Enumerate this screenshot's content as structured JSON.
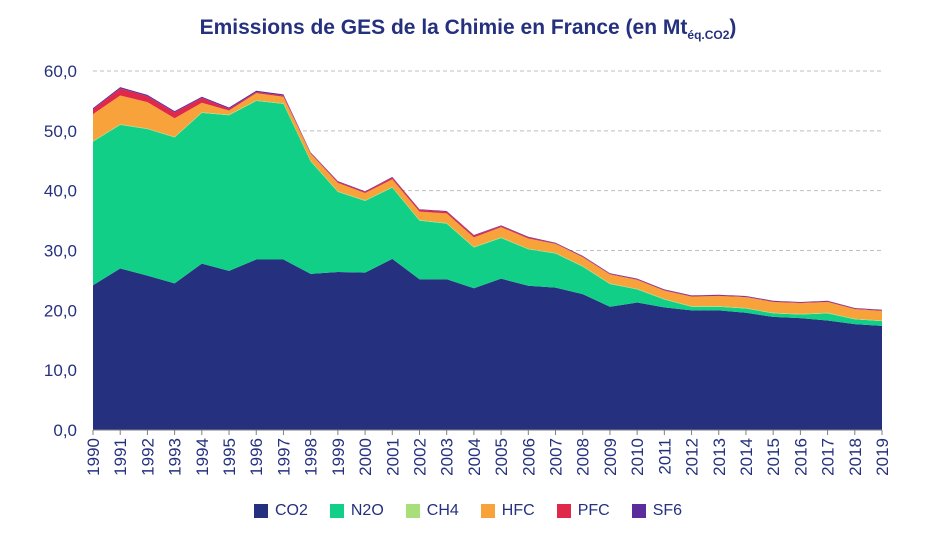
{
  "chart_data": {
    "type": "area",
    "stacked": true,
    "title": "Emissions de GES de la Chimie en France (en Mt",
    "title_subscript": "éq.CO2",
    "title_suffix": ")",
    "xlabel": "",
    "ylabel": "",
    "ylim": [
      0,
      60
    ],
    "yticks": [
      "0,0",
      "10,0",
      "20,0",
      "30,0",
      "40,0",
      "50,0",
      "60,0"
    ],
    "grid": true,
    "legend_position": "bottom",
    "categories": [
      "1990",
      "1991",
      "1992",
      "1993",
      "1994",
      "1995",
      "1996",
      "1997",
      "1998",
      "1999",
      "2000",
      "2001",
      "2002",
      "2003",
      "2004",
      "2005",
      "2006",
      "2007",
      "2008",
      "2009",
      "2010",
      "2011",
      "2012",
      "2013",
      "2014",
      "2015",
      "2016",
      "2017",
      "2018",
      "2019"
    ],
    "series": [
      {
        "name": "CO2",
        "color": "#25307f",
        "values": [
          24.2,
          27.0,
          25.8,
          24.5,
          27.8,
          26.6,
          28.5,
          28.5,
          26.1,
          26.4,
          26.3,
          28.6,
          25.2,
          25.2,
          23.7,
          25.3,
          24.1,
          23.8,
          22.7,
          20.6,
          21.3,
          20.5,
          20.0,
          20.0,
          19.6,
          18.9,
          18.7,
          18.3,
          17.7,
          17.4
        ]
      },
      {
        "name": "N2O",
        "color": "#11cf87",
        "values": [
          24.0,
          24.0,
          24.5,
          24.4,
          25.2,
          26.0,
          26.5,
          26.0,
          18.8,
          13.4,
          12.0,
          11.9,
          9.8,
          9.3,
          6.8,
          6.8,
          6.1,
          5.7,
          4.6,
          3.8,
          2.2,
          1.3,
          0.6,
          0.6,
          0.7,
          0.6,
          0.6,
          1.2,
          0.8,
          0.8
        ]
      },
      {
        "name": "CH4",
        "color": "#a8df7a",
        "values": [
          0.1,
          0.1,
          0.1,
          0.1,
          0.1,
          0.1,
          0.1,
          0.1,
          0.1,
          0.1,
          0.1,
          0.1,
          0.1,
          0.1,
          0.1,
          0.1,
          0.1,
          0.1,
          0.1,
          0.1,
          0.1,
          0.1,
          0.1,
          0.1,
          0.1,
          0.1,
          0.1,
          0.1,
          0.1,
          0.1
        ]
      },
      {
        "name": "HFC",
        "color": "#f7a23a",
        "values": [
          4.5,
          4.8,
          4.4,
          3.1,
          1.6,
          0.7,
          1.2,
          1.1,
          1.2,
          1.4,
          1.2,
          1.3,
          1.4,
          1.6,
          1.6,
          1.7,
          1.7,
          1.5,
          1.5,
          1.5,
          1.5,
          1.4,
          1.6,
          1.7,
          1.8,
          1.8,
          1.8,
          1.8,
          1.6,
          1.6
        ]
      },
      {
        "name": "PFC",
        "color": "#e0294a",
        "values": [
          0.8,
          1.2,
          1.0,
          1.0,
          0.8,
          0.3,
          0.2,
          0.2,
          0.1,
          0.2,
          0.2,
          0.3,
          0.3,
          0.3,
          0.3,
          0.2,
          0.2,
          0.1,
          0.1,
          0.1,
          0.1,
          0.1,
          0.1,
          0.1,
          0.1,
          0.1,
          0.1,
          0.1,
          0.1,
          0.1
        ]
      },
      {
        "name": "SF6",
        "color": "#5b2d9c",
        "values": [
          0.2,
          0.2,
          0.2,
          0.2,
          0.2,
          0.2,
          0.2,
          0.2,
          0.1,
          0.1,
          0.1,
          0.1,
          0.1,
          0.1,
          0.1,
          0.1,
          0.1,
          0.1,
          0.1,
          0.1,
          0.1,
          0.1,
          0.1,
          0.1,
          0.1,
          0.1,
          0.1,
          0.1,
          0.1,
          0.1
        ]
      }
    ]
  }
}
